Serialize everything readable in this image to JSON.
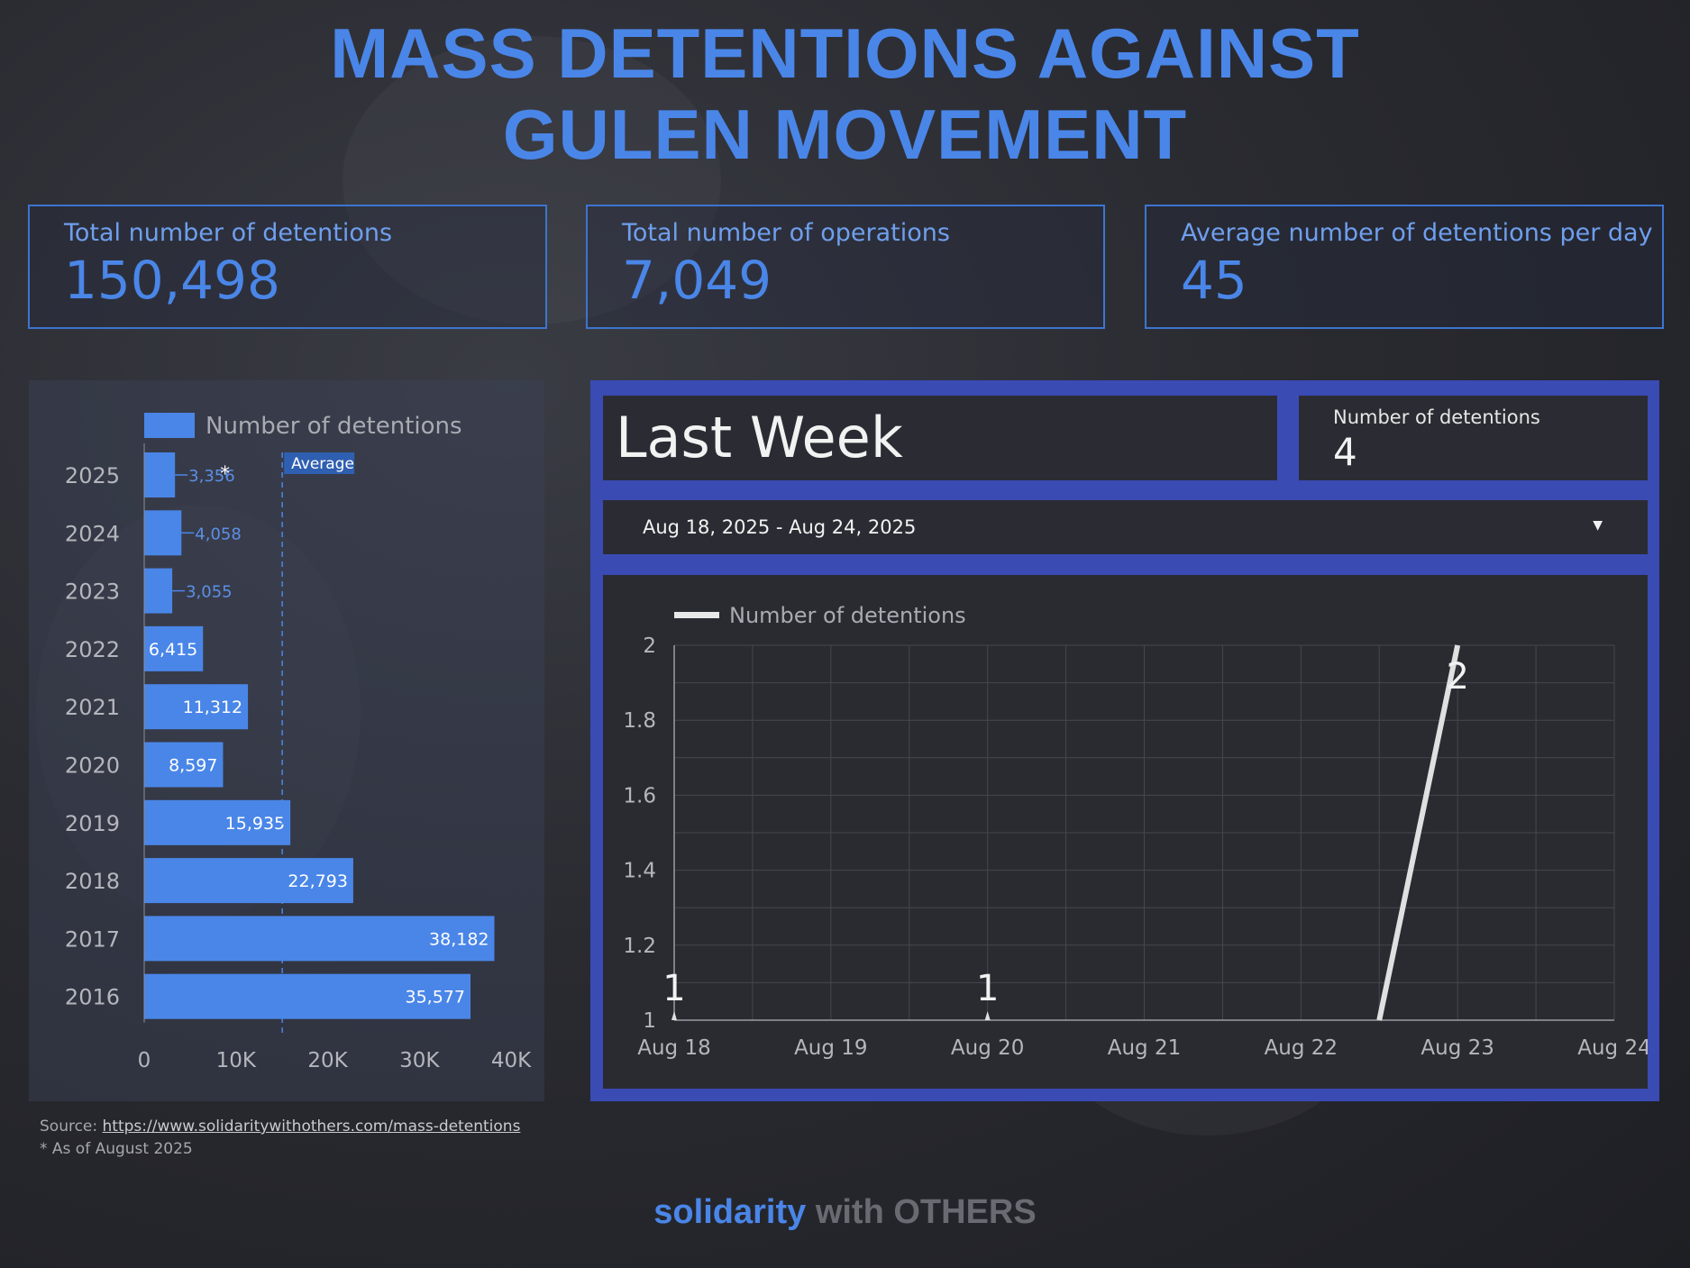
{
  "title": {
    "line1": "MASS DETENTIONS AGAINST",
    "line2": "GULEN MOVEMENT"
  },
  "kpis": [
    {
      "label": "Total number of detentions",
      "value": "150,498"
    },
    {
      "label": "Total number of operations",
      "value": "7,049"
    },
    {
      "label": "Average number of detentions per day",
      "value": "45"
    }
  ],
  "last_week": {
    "title": "Last Week",
    "kpi_label": "Number of detentions",
    "kpi_value": "4",
    "date_range": "Aug 18, 2025 - Aug 24, 2025"
  },
  "colors": {
    "accent": "#4a86e8",
    "panel_border": "#3a4bb4",
    "line": "#e0e0e0"
  },
  "chart_data": [
    {
      "type": "bar",
      "orientation": "horizontal",
      "legend": "Number of detentions",
      "categories": [
        "2025",
        "2024",
        "2023",
        "2022",
        "2021",
        "2020",
        "2019",
        "2018",
        "2017",
        "2016"
      ],
      "values": [
        3356,
        4058,
        3055,
        6415,
        11312,
        8597,
        15935,
        22793,
        38182,
        35577
      ],
      "value_labels": [
        "3,356",
        "4,058",
        "3,055",
        "6,415",
        "11,312",
        "8,597",
        "15,935",
        "22,793",
        "38,182",
        "35,577"
      ],
      "footnote_mark": "*",
      "xlim": [
        0,
        40000
      ],
      "x_ticks": [
        "0",
        "10K",
        "20K",
        "30K",
        "40K"
      ],
      "reference_line": {
        "label": "Average",
        "value": 15049.8
      },
      "grid": false
    },
    {
      "type": "line",
      "legend": "Number of detentions",
      "x": [
        "Aug 18",
        "Aug 19",
        "Aug 20",
        "Aug 21",
        "Aug 22",
        "Aug 23",
        "Aug 24"
      ],
      "points": [
        {
          "x": "Aug 18",
          "y": 1,
          "label": "1"
        },
        {
          "x": "Aug 20",
          "y": 1,
          "label": "1"
        },
        {
          "x": "Aug 23",
          "y": 2,
          "label": "2"
        }
      ],
      "ylim": [
        1,
        2
      ],
      "y_ticks": [
        "2",
        "1.8",
        "1.6",
        "1.4",
        "1.2",
        "1"
      ],
      "grid": true
    }
  ],
  "footer": {
    "source_label": "Source:",
    "source_link": "https://www.solidaritywithothers.com/mass-detentions",
    "note": "* As of August 2025"
  },
  "brand": {
    "part1": "solidarity",
    "part2": "with OTHERS"
  }
}
